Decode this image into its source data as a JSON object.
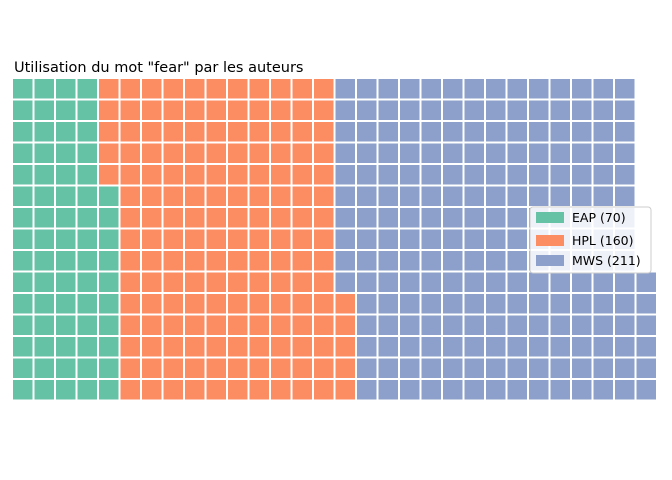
{
  "chart_data": {
    "type": "waffle",
    "title": "Utilisation du mot \"fear\" par les auteurs",
    "rows": 15,
    "fill_order": "column-wise, bottom to top, left to right",
    "categories": [
      "EAP (70)",
      "HPL (160)",
      "MWS (211)"
    ],
    "values": [
      70,
      160,
      211
    ],
    "colors": [
      "#66c2a5",
      "#fc8d62",
      "#8da0cb"
    ],
    "legend_position": "center-right",
    "grid": false,
    "axes": false
  }
}
